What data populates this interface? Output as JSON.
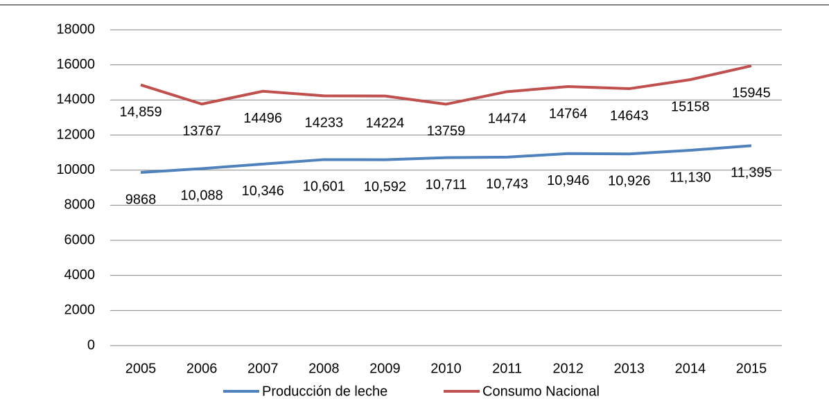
{
  "chart_data": {
    "type": "line",
    "categories": [
      "2005",
      "2006",
      "2007",
      "2008",
      "2009",
      "2010",
      "2011",
      "2012",
      "2013",
      "2014",
      "2015"
    ],
    "series": [
      {
        "name": "Producción de leche",
        "color": "#4f81bd",
        "values": [
          9868,
          10088,
          10346,
          10601,
          10592,
          10711,
          10743,
          10946,
          10926,
          11130,
          11395
        ],
        "value_labels": [
          "9868",
          "10,088",
          "10,346",
          "10,601",
          "10,592",
          "10,711",
          "10,743",
          "10,946",
          "10,926",
          "11,130",
          "11,395"
        ]
      },
      {
        "name": "Consumo Nacional",
        "color": "#c0504d",
        "values": [
          14859,
          13767,
          14496,
          14233,
          14224,
          13759,
          14474,
          14764,
          14643,
          15158,
          15945
        ],
        "value_labels": [
          "14,859",
          "13767",
          "14496",
          "14233",
          "14224",
          "13759",
          "14474",
          "14764",
          "14643",
          "15158",
          "15945"
        ]
      }
    ],
    "ylim": [
      0,
      18000
    ],
    "yticks": [
      0,
      2000,
      4000,
      6000,
      8000,
      10000,
      12000,
      14000,
      16000,
      18000
    ],
    "grid": true,
    "legend": "bottom"
  }
}
